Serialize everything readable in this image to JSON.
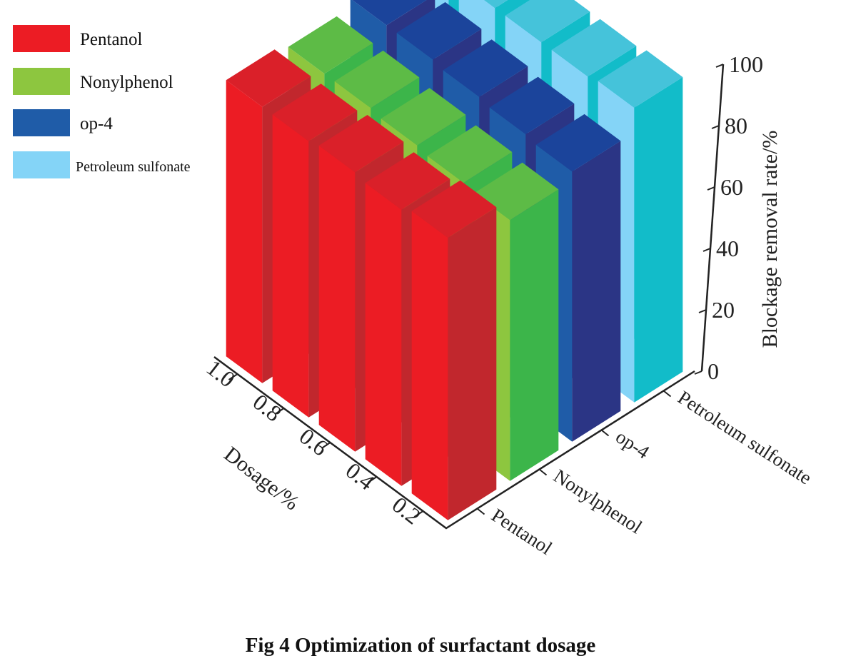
{
  "chart_data": {
    "type": "bar",
    "subtype": "3d-grouped-bar",
    "title": "Fig 4 Optimization of surfactant dosage",
    "xlabel": "Dosage/%",
    "ylabel": "",
    "zlabel": "Blockage removal rate/%",
    "categories": [
      "0.2",
      "0.4",
      "0.6",
      "0.8",
      "1.0"
    ],
    "zlim": [
      0,
      100
    ],
    "zticks": [
      "0",
      "20",
      "40",
      "60",
      "80",
      "100"
    ],
    "legend_position": "top-left",
    "grid": false,
    "series": [
      {
        "name": "Pentanol",
        "values": [
          92,
          90,
          91,
          90,
          90
        ],
        "colors": {
          "swatch": "#ec1c24",
          "left": "#ec1c24",
          "right": "#c1272d",
          "top": "#da2029"
        }
      },
      {
        "name": "Nonylphenol",
        "values": [
          85,
          86,
          87,
          88,
          88
        ],
        "colors": {
          "swatch": "#8dc63f",
          "left": "#8dc63f",
          "right": "#3cb54a",
          "top": "#5dbb46"
        }
      },
      {
        "name": "op-4",
        "values": [
          88,
          89,
          90,
          91,
          91
        ],
        "colors": {
          "swatch": "#1f5ca8",
          "left": "#1f5ca8",
          "right": "#2b3585",
          "top": "#1b449b"
        }
      },
      {
        "name": "Petroleum sulfonate",
        "values": [
          96,
          95,
          95,
          95,
          96
        ],
        "colors": {
          "swatch": "#84d4f7",
          "left": "#84d4f7",
          "right": "#12bcc9",
          "top": "#45c3da"
        }
      }
    ]
  }
}
